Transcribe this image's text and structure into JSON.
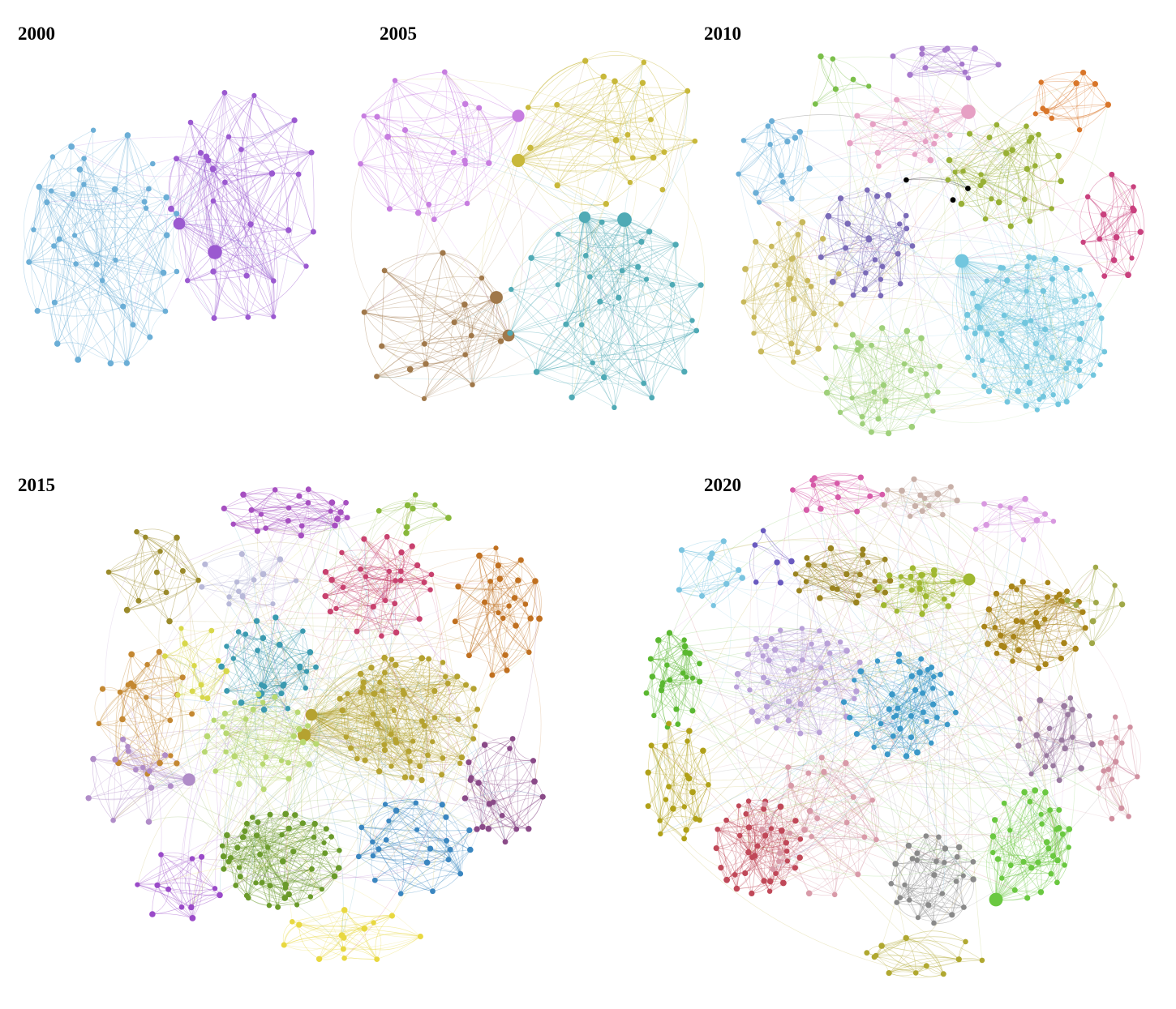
{
  "panels": [
    {
      "year": "2000",
      "clusters": [
        {
          "color": "#6baed6",
          "nodes": 40
        },
        {
          "color": "#9b59d0",
          "nodes": 28
        }
      ]
    },
    {
      "year": "2005",
      "clusters": [
        {
          "color": "#c77de0",
          "nodes": 18
        },
        {
          "color": "#c8b83a",
          "nodes": 20
        },
        {
          "color": "#a0784a",
          "nodes": 16
        },
        {
          "color": "#4faab5",
          "nodes": 30
        }
      ]
    },
    {
      "year": "2010",
      "clusters": [
        {
          "color": "#7bbf4a",
          "nodes": 6
        },
        {
          "color": "#a678cc",
          "nodes": 12
        },
        {
          "color": "#d9762a",
          "nodes": 10
        },
        {
          "color": "#e6a0c4",
          "nodes": 14
        },
        {
          "color": "#6baed6",
          "nodes": 14
        },
        {
          "color": "#98b035",
          "nodes": 28
        },
        {
          "color": "#c9417e",
          "nodes": 14
        },
        {
          "color": "#7a6ab8",
          "nodes": 24
        },
        {
          "color": "#c8b85a",
          "nodes": 28
        },
        {
          "color": "#72c6de",
          "nodes": 60
        },
        {
          "color": "#9fd07a",
          "nodes": 30
        },
        {
          "color": "#000000",
          "nodes": 3
        }
      ]
    },
    {
      "year": "2015",
      "clusters": [
        {
          "color": "#a64fc0",
          "nodes": 22
        },
        {
          "color": "#88b83a",
          "nodes": 8
        },
        {
          "color": "#9a8a2a",
          "nodes": 12
        },
        {
          "color": "#b8b8d8",
          "nodes": 14
        },
        {
          "color": "#c8416e",
          "nodes": 28
        },
        {
          "color": "#c07020",
          "nodes": 24
        },
        {
          "color": "#c48832",
          "nodes": 20
        },
        {
          "color": "#d8d84a",
          "nodes": 12
        },
        {
          "color": "#3a9ab0",
          "nodes": 28
        },
        {
          "color": "#b5a230",
          "nodes": 60
        },
        {
          "color": "#b8d870",
          "nodes": 30
        },
        {
          "color": "#b08cc8",
          "nodes": 14
        },
        {
          "color": "#8a4a88",
          "nodes": 20
        },
        {
          "color": "#6a9a2a",
          "nodes": 50
        },
        {
          "color": "#3a86c0",
          "nodes": 24
        },
        {
          "color": "#9a4ac8",
          "nodes": 12
        },
        {
          "color": "#e8d840",
          "nodes": 14
        }
      ]
    },
    {
      "year": "2020",
      "clusters": [
        {
          "color": "#d65aa8",
          "nodes": 12
        },
        {
          "color": "#c8b0a8",
          "nodes": 14
        },
        {
          "color": "#d898e0",
          "nodes": 10
        },
        {
          "color": "#7ac4e0",
          "nodes": 10
        },
        {
          "color": "#6a5ac0",
          "nodes": 6
        },
        {
          "color": "#9a8420",
          "nodes": 22
        },
        {
          "color": "#a0b830",
          "nodes": 22
        },
        {
          "color": "#a88418",
          "nodes": 36
        },
        {
          "color": "#a0a848",
          "nodes": 8
        },
        {
          "color": "#5ab830",
          "nodes": 24
        },
        {
          "color": "#b8a0d8",
          "nodes": 40
        },
        {
          "color": "#3a98c8",
          "nodes": 40
        },
        {
          "color": "#9a7aa0",
          "nodes": 20
        },
        {
          "color": "#d090a0",
          "nodes": 14
        },
        {
          "color": "#b0a018",
          "nodes": 22
        },
        {
          "color": "#c04858",
          "nodes": 36
        },
        {
          "color": "#d89aa8",
          "nodes": 24
        },
        {
          "color": "#8a8a8a",
          "nodes": 28
        },
        {
          "color": "#6ac840",
          "nodes": 34
        },
        {
          "color": "#b0a830",
          "nodes": 12
        }
      ]
    }
  ]
}
